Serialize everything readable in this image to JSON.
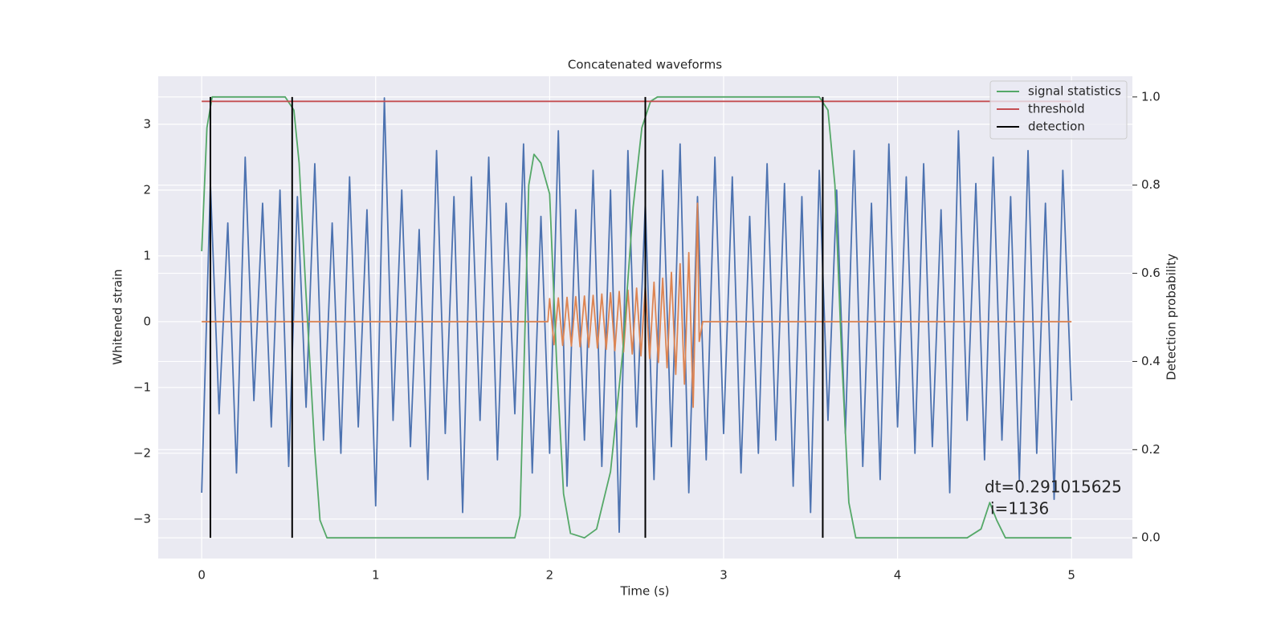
{
  "chart_data": {
    "type": "line",
    "title": "Concatenated waveforms",
    "xlabel": "Time (s)",
    "ylabel": "Whitened strain",
    "y2label": "Detection probability",
    "xlim": [
      -0.25,
      5.35
    ],
    "ylim": [
      -3.6,
      3.73
    ],
    "y2lim": [
      -0.047,
      1.047
    ],
    "xticks": [
      0,
      1,
      2,
      3,
      4,
      5
    ],
    "yticks": [
      {
        "value": -3,
        "label": "−3"
      },
      {
        "value": -2,
        "label": "−2"
      },
      {
        "value": -1,
        "label": "−1"
      },
      0,
      1,
      2,
      3
    ],
    "y2ticks": [
      {
        "value": 0,
        "label": "0.0"
      },
      {
        "value": 0.2,
        "label": "0.2"
      },
      {
        "value": 0.4,
        "label": "0.4"
      },
      {
        "value": 0.6,
        "label": "0.6"
      },
      {
        "value": 0.8,
        "label": "0.8"
      },
      {
        "value": 1.0,
        "label": "1.0"
      }
    ],
    "grid": true,
    "legend": "upper right",
    "annotations": [
      "dt=0.291015625",
      "i=1136"
    ],
    "series": [
      {
        "color": "#4c72b0",
        "x": [
          0,
          0.05,
          0.1,
          0.15,
          0.2,
          0.25,
          0.3,
          0.35,
          0.4,
          0.45,
          0.5,
          0.55,
          0.6,
          0.65,
          0.7,
          0.75,
          0.8,
          0.85,
          0.9,
          0.95,
          1,
          1.05,
          1.1,
          1.15,
          1.2,
          1.25,
          1.3,
          1.35,
          1.4,
          1.45,
          1.5,
          1.55,
          1.6,
          1.65,
          1.7,
          1.75,
          1.8,
          1.85,
          1.9,
          1.95,
          2,
          2.05,
          2.1,
          2.15,
          2.2,
          2.25,
          2.3,
          2.35,
          2.4,
          2.45,
          2.5,
          2.55,
          2.6,
          2.65,
          2.7,
          2.75,
          2.8,
          2.85,
          2.9,
          2.95,
          3,
          3.05,
          3.1,
          3.15,
          3.2,
          3.25,
          3.3,
          3.35,
          3.4,
          3.45,
          3.5,
          3.55,
          3.6,
          3.65,
          3.7,
          3.75,
          3.8,
          3.85,
          3.9,
          3.95,
          4,
          4.05,
          4.1,
          4.15,
          4.2,
          4.25,
          4.3,
          4.35,
          4.4,
          4.45,
          4.5,
          4.55,
          4.6,
          4.65,
          4.7,
          4.75,
          4.8,
          4.85,
          4.9,
          4.95,
          5
        ],
        "values": [
          -2.6,
          2.1,
          -1.4,
          1.5,
          -2.3,
          2.5,
          -1.2,
          1.8,
          -1.6,
          2.0,
          -2.2,
          1.9,
          -1.3,
          2.4,
          -1.8,
          1.5,
          -2.0,
          2.2,
          -1.6,
          1.7,
          -2.8,
          3.4,
          -1.5,
          2.0,
          -1.9,
          1.4,
          -2.4,
          2.6,
          -1.7,
          1.9,
          -2.9,
          2.2,
          -1.5,
          2.5,
          -2.1,
          1.8,
          -1.4,
          2.7,
          -2.3,
          1.6,
          -2.0,
          2.9,
          -2.5,
          1.7,
          -1.8,
          2.3,
          -2.2,
          2.0,
          -3.2,
          2.6,
          -1.6,
          1.8,
          -2.4,
          2.3,
          -1.9,
          2.7,
          -2.6,
          1.9,
          -2.1,
          2.5,
          -1.7,
          2.2,
          -2.3,
          1.6,
          -2.0,
          2.4,
          -1.8,
          2.1,
          -2.5,
          1.9,
          -2.9,
          2.3,
          -1.5,
          2.0,
          -1.7,
          2.6,
          -2.2,
          1.8,
          -2.4,
          2.7,
          -1.6,
          2.2,
          -2.0,
          2.4,
          -1.9,
          1.7,
          -2.6,
          2.9,
          -1.5,
          2.1,
          -2.1,
          2.5,
          -1.8,
          1.9,
          -2.4,
          2.6,
          -2.0,
          1.8,
          -2.7,
          2.3,
          -1.2
        ]
      },
      {
        "color": "#dd8452",
        "x": [
          0,
          1.99,
          2.0,
          2.025,
          2.05,
          2.075,
          2.1,
          2.125,
          2.15,
          2.175,
          2.2,
          2.225,
          2.25,
          2.275,
          2.3,
          2.325,
          2.35,
          2.375,
          2.4,
          2.425,
          2.45,
          2.475,
          2.5,
          2.525,
          2.55,
          2.575,
          2.6,
          2.625,
          2.65,
          2.675,
          2.7,
          2.725,
          2.75,
          2.775,
          2.8,
          2.825,
          2.85,
          2.86,
          2.88,
          5
        ],
        "values": [
          0,
          0,
          0.35,
          -0.35,
          0.36,
          -0.36,
          0.37,
          -0.37,
          0.38,
          -0.38,
          0.39,
          -0.39,
          0.4,
          -0.4,
          0.42,
          -0.42,
          0.44,
          -0.44,
          0.46,
          -0.46,
          0.48,
          -0.49,
          0.51,
          -0.52,
          0.55,
          -0.56,
          0.6,
          -0.62,
          0.66,
          -0.7,
          0.75,
          -0.8,
          0.88,
          -0.95,
          1.05,
          -1.3,
          1.8,
          -0.3,
          0,
          0
        ]
      },
      {
        "name": "signal statistics",
        "color": "#55a868",
        "axis": "y2",
        "x": [
          0,
          0.03,
          0.06,
          0.48,
          0.53,
          0.56,
          0.6,
          0.65,
          0.68,
          0.72,
          1.8,
          1.83,
          1.86,
          1.88,
          1.91,
          1.95,
          2.0,
          2.04,
          2.08,
          2.12,
          2.2,
          2.27,
          2.35,
          2.42,
          2.48,
          2.53,
          2.58,
          2.62,
          3.55,
          3.6,
          3.64,
          3.68,
          3.72,
          3.76,
          4.4,
          4.48,
          4.53,
          4.57,
          4.62,
          5.0
        ],
        "values": [
          0.65,
          0.93,
          1.0,
          1.0,
          0.97,
          0.85,
          0.55,
          0.2,
          0.04,
          0,
          0,
          0.05,
          0.5,
          0.8,
          0.87,
          0.85,
          0.78,
          0.4,
          0.1,
          0.01,
          0,
          0.02,
          0.15,
          0.42,
          0.75,
          0.93,
          0.99,
          1.0,
          1.0,
          0.97,
          0.8,
          0.4,
          0.08,
          0,
          0,
          0.02,
          0.08,
          0.04,
          0,
          0
        ]
      },
      {
        "name": "threshold",
        "color": "#c44e52",
        "axis": "y2",
        "x": [
          0,
          5
        ],
        "values": [
          0.99,
          0.99
        ]
      },
      {
        "name": "detection",
        "color": "#000000",
        "axis": "y2",
        "kind": "vlines",
        "x": [
          0.05,
          0.52,
          2.55,
          3.57
        ],
        "ymin": [
          0,
          0,
          0,
          0
        ],
        "ymax": [
          1,
          1,
          1,
          1
        ]
      }
    ]
  }
}
